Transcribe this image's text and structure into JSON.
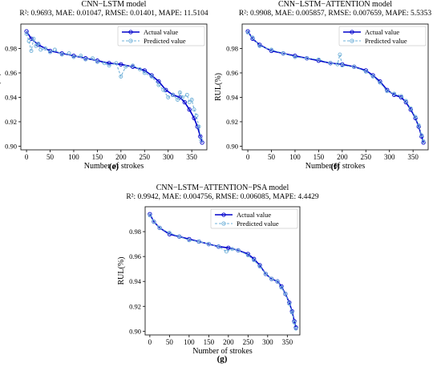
{
  "chart_data": [
    {
      "type": "line",
      "panel_label": "(e)",
      "title": "CNN−LSTM model",
      "subtitle": "R²: 0.9693, MAE: 0.01047, RMSE: 0.01401, MAPE: 11.5104",
      "xlabel": "Number of strokes",
      "ylabel": "RUL(%)",
      "xlim": [
        -12,
        382
      ],
      "ylim": [
        0.897,
        1.0
      ],
      "x_ticks": [
        0,
        50,
        100,
        150,
        200,
        250,
        300,
        350
      ],
      "y_ticks": [
        0.9,
        0.92,
        0.94,
        0.96,
        0.98
      ],
      "legend_position": "top-right",
      "grid": false,
      "series": [
        {
          "name": "Actual value",
          "color": "#0000cc",
          "marker": "circle-open",
          "line": "solid",
          "x": [
            0,
            10,
            25,
            50,
            75,
            100,
            125,
            150,
            175,
            200,
            225,
            250,
            265,
            280,
            295,
            310,
            325,
            335,
            345,
            355,
            362,
            368,
            372
          ],
          "y": [
            0.994,
            0.988,
            0.983,
            0.978,
            0.976,
            0.974,
            0.972,
            0.97,
            0.968,
            0.967,
            0.965,
            0.962,
            0.958,
            0.953,
            0.946,
            0.942,
            0.94,
            0.936,
            0.93,
            0.923,
            0.916,
            0.908,
            0.903
          ]
        },
        {
          "name": "Predicted value",
          "color": "#6fb0d8",
          "marker": "circle-open",
          "line": "dashed",
          "x": [
            0,
            5,
            10,
            15,
            20,
            25,
            30,
            40,
            50,
            60,
            75,
            90,
            100,
            115,
            125,
            140,
            150,
            165,
            175,
            190,
            200,
            210,
            225,
            240,
            250,
            265,
            280,
            290,
            300,
            310,
            320,
            325,
            330,
            340,
            345,
            350,
            355,
            360,
            365,
            370
          ],
          "y": [
            0.992,
            0.986,
            0.978,
            0.988,
            0.982,
            0.984,
            0.979,
            0.98,
            0.977,
            0.979,
            0.975,
            0.976,
            0.973,
            0.974,
            0.971,
            0.972,
            0.969,
            0.968,
            0.966,
            0.968,
            0.957,
            0.965,
            0.966,
            0.963,
            0.96,
            0.957,
            0.95,
            0.946,
            0.94,
            0.942,
            0.938,
            0.944,
            0.94,
            0.942,
            0.936,
            0.938,
            0.93,
            0.925,
            0.916,
            0.905
          ]
        }
      ]
    },
    {
      "type": "line",
      "panel_label": "(f)",
      "title": "CNN−LSTM−ATTENTION model",
      "subtitle": "R²: 0.9908, MAE: 0.005857, RMSE: 0.007659, MAPE: 5.5353",
      "xlabel": "Number of strokes",
      "ylabel": "RUL(%)",
      "xlim": [
        -12,
        382
      ],
      "ylim": [
        0.897,
        1.0
      ],
      "x_ticks": [
        0,
        50,
        100,
        150,
        200,
        250,
        300,
        350
      ],
      "y_ticks": [
        0.9,
        0.92,
        0.94,
        0.96,
        0.98
      ],
      "legend_position": "top-right",
      "grid": false,
      "series": [
        {
          "name": "Actual value",
          "color": "#0000cc",
          "marker": "circle-open",
          "line": "solid",
          "x": [
            0,
            10,
            25,
            50,
            75,
            100,
            125,
            150,
            175,
            200,
            225,
            250,
            265,
            280,
            295,
            310,
            325,
            335,
            345,
            355,
            362,
            368,
            372
          ],
          "y": [
            0.994,
            0.988,
            0.983,
            0.978,
            0.976,
            0.974,
            0.972,
            0.97,
            0.968,
            0.967,
            0.965,
            0.962,
            0.958,
            0.953,
            0.946,
            0.942,
            0.94,
            0.936,
            0.93,
            0.923,
            0.916,
            0.908,
            0.903
          ]
        },
        {
          "name": "Predicted value",
          "color": "#6fb0d8",
          "marker": "circle-open",
          "line": "dashed",
          "x": [
            0,
            10,
            25,
            50,
            75,
            100,
            125,
            150,
            175,
            190,
            195,
            200,
            225,
            250,
            265,
            280,
            295,
            310,
            325,
            335,
            345,
            355,
            362,
            368,
            372
          ],
          "y": [
            0.993,
            0.989,
            0.982,
            0.979,
            0.976,
            0.973,
            0.972,
            0.971,
            0.968,
            0.967,
            0.975,
            0.966,
            0.965,
            0.961,
            0.957,
            0.952,
            0.945,
            0.943,
            0.941,
            0.937,
            0.931,
            0.924,
            0.917,
            0.909,
            0.904
          ]
        }
      ]
    },
    {
      "type": "line",
      "panel_label": "(g)",
      "title": "CNN−LSTM−ATTENTION−PSA model",
      "subtitle": "R²: 0.9942, MAE: 0.004756, RMSE: 0.006085, MAPE: 4.4429",
      "xlabel": "Number of strokes",
      "ylabel": "RUL(%)",
      "xlim": [
        -12,
        382
      ],
      "ylim": [
        0.897,
        1.0
      ],
      "x_ticks": [
        0,
        50,
        100,
        150,
        200,
        250,
        300,
        350
      ],
      "y_ticks": [
        0.9,
        0.92,
        0.94,
        0.96,
        0.98
      ],
      "legend_position": "top-right",
      "grid": false,
      "series": [
        {
          "name": "Actual value",
          "color": "#0000cc",
          "marker": "circle-open",
          "line": "solid",
          "x": [
            0,
            10,
            25,
            50,
            75,
            100,
            125,
            150,
            175,
            200,
            225,
            250,
            265,
            280,
            295,
            310,
            325,
            335,
            345,
            355,
            362,
            368,
            372
          ],
          "y": [
            0.994,
            0.988,
            0.983,
            0.978,
            0.976,
            0.974,
            0.972,
            0.97,
            0.968,
            0.967,
            0.965,
            0.962,
            0.958,
            0.953,
            0.946,
            0.942,
            0.94,
            0.936,
            0.93,
            0.923,
            0.916,
            0.908,
            0.903
          ]
        },
        {
          "name": "Predicted value",
          "color": "#6fb0d8",
          "marker": "circle-open",
          "line": "dashed",
          "x": [
            0,
            10,
            25,
            50,
            75,
            100,
            125,
            150,
            175,
            195,
            210,
            225,
            250,
            265,
            280,
            295,
            310,
            325,
            335,
            345,
            355,
            362,
            368,
            372
          ],
          "y": [
            0.993,
            0.988,
            0.983,
            0.979,
            0.976,
            0.973,
            0.972,
            0.97,
            0.968,
            0.964,
            0.966,
            0.965,
            0.961,
            0.957,
            0.952,
            0.946,
            0.942,
            0.94,
            0.935,
            0.93,
            0.922,
            0.915,
            0.907,
            0.902
          ]
        }
      ]
    }
  ]
}
